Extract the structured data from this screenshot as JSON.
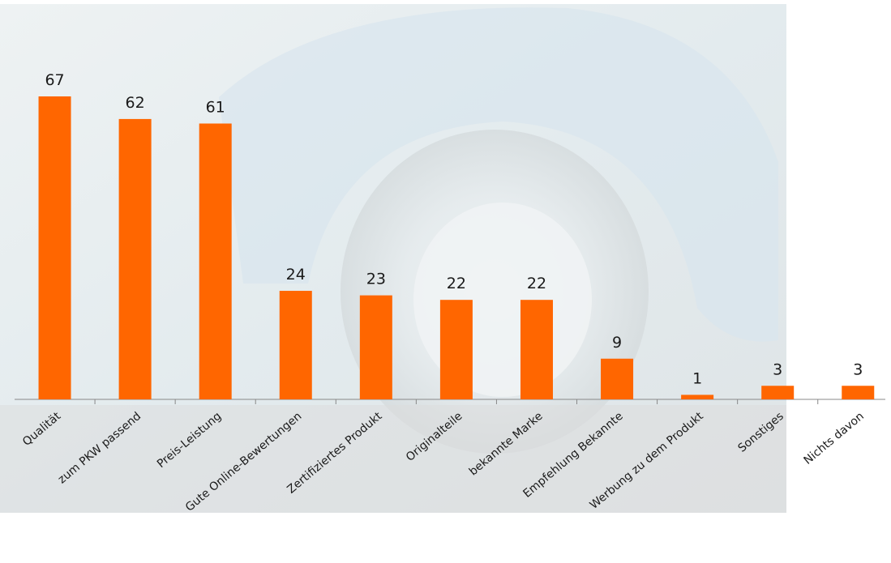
{
  "chart_data": {
    "type": "bar",
    "categories": [
      "Qualität",
      "zum PKW passend",
      "Preis-Leistung",
      "Gute Online-Bewertungen",
      "Zertifiziertes Produkt",
      "Originalteile",
      "bekannte Marke",
      "Empfehlung Bekannte",
      "Werbung zu dem Produkt",
      "Sonstiges",
      "Nichts davon"
    ],
    "values": [
      67,
      62,
      61,
      24,
      23,
      22,
      22,
      9,
      1,
      3,
      3
    ],
    "color": "#ff6600"
  }
}
